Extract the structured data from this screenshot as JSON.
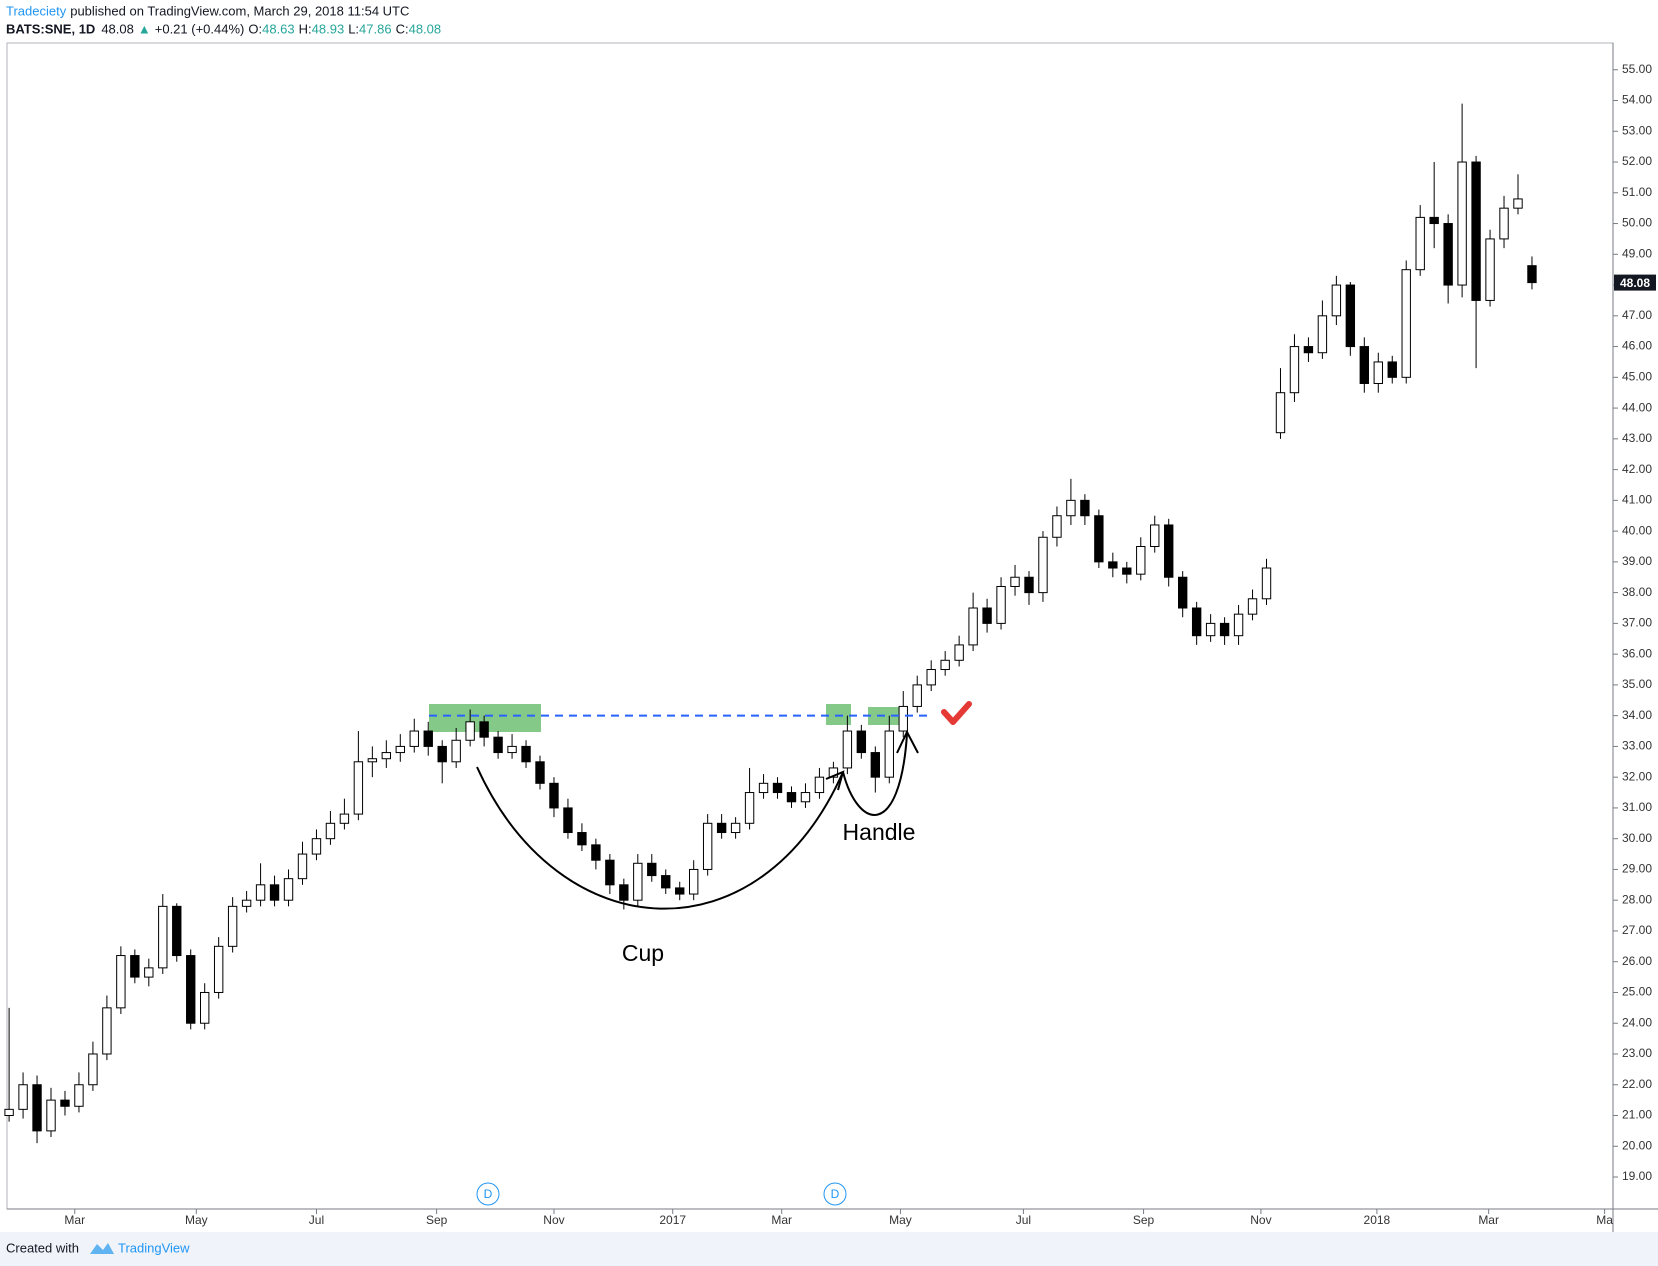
{
  "header": {
    "publisher": "Tradeciety",
    "published": "published on TradingView.com, March 29, 2018 11:54 UTC",
    "symbol": "BATS:SNE, 1D",
    "price": "48.08",
    "change_arrow": "▲",
    "change": "+0.21 (+0.44%)",
    "ohlc": [
      {
        "key": "O:",
        "value": "48.63"
      },
      {
        "key": "H:",
        "value": "48.93"
      },
      {
        "key": "L:",
        "value": "47.86"
      },
      {
        "key": "C:",
        "value": "48.08"
      }
    ]
  },
  "chart_data": {
    "type": "candlestick",
    "open": [
      21.0,
      21.2,
      22.0,
      20.5,
      21.5,
      21.3,
      22.0,
      23.0,
      24.5,
      26.2,
      25.5,
      25.8,
      27.8,
      26.2,
      24.0,
      25.0,
      26.5,
      27.8,
      28.0,
      28.5,
      28.0,
      28.7,
      29.5,
      30.0,
      30.5,
      30.8,
      32.5,
      32.6,
      32.8,
      33.0,
      33.5,
      33.0,
      32.5,
      33.2,
      33.8,
      33.3,
      32.8,
      33.0,
      32.5,
      31.8,
      31.0,
      30.2,
      29.8,
      29.3,
      28.5,
      28.0,
      29.2,
      28.8,
      28.4,
      28.2,
      29.0,
      30.5,
      30.2,
      30.5,
      31.5,
      31.8,
      31.5,
      31.2,
      31.5,
      32.0,
      32.3,
      33.5,
      32.8,
      32.0,
      33.5,
      34.3,
      35.0,
      35.5,
      35.8,
      36.3,
      37.5,
      37.0,
      38.2,
      38.5,
      38.0,
      39.8,
      40.5,
      41.0,
      40.5,
      39.0,
      38.8,
      38.6,
      39.5,
      40.2,
      38.5,
      37.5,
      36.6,
      37.0,
      36.6,
      37.3,
      37.8,
      43.2,
      44.5,
      46.0,
      45.8,
      47.0,
      48.0,
      46.0,
      44.8,
      45.5,
      45.0,
      48.5,
      50.2,
      50.0,
      48.0,
      52.0,
      47.5,
      49.5,
      50.5,
      48.63
    ],
    "high": [
      24.5,
      22.4,
      22.3,
      21.9,
      21.8,
      22.4,
      23.4,
      24.9,
      26.5,
      26.4,
      26.1,
      28.2,
      27.9,
      26.4,
      25.3,
      26.8,
      28.1,
      28.3,
      29.2,
      28.8,
      29.0,
      29.9,
      30.3,
      30.9,
      31.3,
      33.5,
      33.0,
      33.2,
      33.4,
      33.9,
      33.8,
      33.2,
      33.6,
      34.2,
      34.0,
      33.5,
      33.4,
      33.2,
      32.7,
      32.0,
      31.3,
      30.5,
      30.0,
      29.5,
      28.7,
      29.5,
      29.5,
      29.0,
      28.6,
      29.3,
      30.8,
      30.8,
      30.7,
      32.3,
      32.1,
      32.0,
      31.7,
      31.8,
      32.3,
      32.5,
      34.0,
      33.7,
      33.0,
      34.0,
      34.8,
      35.3,
      35.8,
      36.1,
      36.6,
      38.0,
      37.8,
      38.5,
      38.9,
      38.7,
      40.0,
      40.8,
      41.7,
      41.2,
      40.7,
      39.3,
      39.0,
      39.8,
      40.5,
      40.4,
      38.7,
      37.7,
      37.3,
      37.2,
      37.6,
      38.1,
      39.1,
      45.3,
      46.4,
      46.3,
      47.5,
      48.3,
      48.1,
      46.3,
      45.8,
      45.7,
      48.8,
      50.6,
      52.0,
      50.3,
      53.9,
      52.2,
      49.8,
      50.9,
      51.6,
      48.93
    ],
    "low": [
      20.8,
      20.9,
      20.1,
      20.3,
      21.0,
      21.1,
      21.8,
      22.8,
      24.3,
      25.3,
      25.2,
      25.6,
      26.0,
      23.8,
      23.8,
      24.8,
      26.3,
      27.6,
      27.8,
      27.8,
      27.8,
      28.5,
      29.3,
      29.8,
      30.3,
      30.6,
      32.0,
      32.3,
      32.5,
      32.8,
      32.7,
      31.8,
      32.3,
      33.0,
      33.0,
      32.6,
      32.6,
      32.3,
      31.6,
      30.7,
      30.0,
      29.6,
      29.0,
      28.2,
      27.7,
      27.8,
      28.6,
      28.2,
      28.0,
      28.0,
      28.8,
      30.0,
      30.0,
      30.3,
      31.3,
      31.3,
      31.0,
      31.0,
      31.3,
      31.8,
      32.1,
      32.6,
      31.5,
      31.8,
      33.3,
      34.1,
      34.8,
      35.3,
      35.6,
      36.1,
      36.7,
      36.8,
      37.9,
      37.6,
      37.7,
      39.5,
      40.2,
      40.2,
      38.8,
      38.5,
      38.3,
      38.4,
      39.3,
      38.2,
      37.2,
      36.3,
      36.4,
      36.3,
      36.3,
      37.1,
      37.6,
      43.0,
      44.2,
      45.5,
      45.6,
      46.7,
      45.7,
      44.5,
      44.5,
      44.8,
      44.8,
      48.3,
      49.2,
      47.4,
      47.6,
      45.3,
      47.3,
      49.2,
      50.3,
      47.86
    ],
    "close": [
      21.2,
      22.0,
      20.5,
      21.5,
      21.3,
      22.0,
      23.0,
      24.5,
      26.2,
      25.5,
      25.8,
      27.8,
      26.2,
      24.0,
      25.0,
      26.5,
      27.8,
      28.0,
      28.5,
      28.0,
      28.7,
      29.5,
      30.0,
      30.5,
      30.8,
      32.5,
      32.6,
      32.8,
      33.0,
      33.5,
      33.0,
      32.5,
      33.2,
      33.8,
      33.3,
      32.8,
      33.0,
      32.5,
      31.8,
      31.0,
      30.2,
      29.8,
      29.3,
      28.5,
      28.0,
      29.2,
      28.8,
      28.4,
      28.2,
      29.0,
      30.5,
      30.2,
      30.5,
      31.5,
      31.8,
      31.5,
      31.2,
      31.5,
      32.0,
      32.3,
      33.5,
      32.8,
      32.0,
      33.5,
      34.3,
      35.0,
      35.5,
      35.8,
      36.3,
      37.5,
      37.0,
      38.2,
      38.5,
      38.0,
      39.8,
      40.5,
      41.0,
      40.5,
      39.0,
      38.8,
      38.6,
      39.5,
      40.2,
      38.5,
      37.5,
      36.6,
      37.0,
      36.6,
      37.3,
      37.8,
      38.8,
      44.5,
      46.0,
      45.8,
      47.0,
      48.0,
      46.0,
      44.8,
      45.5,
      45.0,
      48.5,
      50.2,
      50.0,
      48.0,
      52.0,
      47.5,
      49.5,
      50.5,
      50.8,
      48.08
    ],
    "up_color": "#ffffff",
    "down_color": "#000000",
    "wick_color": "#000000",
    "xlim": [
      -0.15,
      114.8
    ],
    "xticks": [
      {
        "value": 4.7,
        "label": "Mar"
      },
      {
        "value": 13.4,
        "label": "May"
      },
      {
        "value": 22,
        "label": "Jul"
      },
      {
        "value": 30.6,
        "label": "Sep"
      },
      {
        "value": 39,
        "label": "Nov"
      },
      {
        "value": 47.5,
        "label": "2017"
      },
      {
        "value": 55.3,
        "label": "Mar"
      },
      {
        "value": 63.8,
        "label": "May"
      },
      {
        "value": 72.6,
        "label": "Jul"
      },
      {
        "value": 81.2,
        "label": "Sep"
      },
      {
        "value": 89.6,
        "label": "Nov"
      },
      {
        "value": 97.9,
        "label": "2018"
      },
      {
        "value": 105.9,
        "label": "Mar"
      },
      {
        "value": 114.2,
        "label": "Ma"
      }
    ],
    "ylim": [
      17.96,
      55.87
    ],
    "yticks": [
      {
        "value": 19,
        "label": "19.00"
      },
      {
        "value": 20,
        "label": "20.00"
      },
      {
        "value": 21,
        "label": "21.00"
      },
      {
        "value": 22,
        "label": "22.00"
      },
      {
        "value": 23,
        "label": "23.00"
      },
      {
        "value": 24,
        "label": "24.00"
      },
      {
        "value": 25,
        "label": "25.00"
      },
      {
        "value": 26,
        "label": "26.00"
      },
      {
        "value": 27,
        "label": "27.00"
      },
      {
        "value": 28,
        "label": "28.00"
      },
      {
        "value": 29,
        "label": "29.00"
      },
      {
        "value": 30,
        "label": "30.00"
      },
      {
        "value": 31,
        "label": "31.00"
      },
      {
        "value": 32,
        "label": "32.00"
      },
      {
        "value": 33,
        "label": "33.00"
      },
      {
        "value": 34,
        "label": "34.00"
      },
      {
        "value": 35,
        "label": "35.00"
      },
      {
        "value": 36,
        "label": "36.00"
      },
      {
        "value": 37,
        "label": "37.00"
      },
      {
        "value": 38,
        "label": "38.00"
      },
      {
        "value": 39,
        "label": "39.00"
      },
      {
        "value": 40,
        "label": "40.00"
      },
      {
        "value": 41,
        "label": "41.00"
      },
      {
        "value": 42,
        "label": "42.00"
      },
      {
        "value": 43,
        "label": "43.00"
      },
      {
        "value": 44,
        "label": "44.00"
      },
      {
        "value": 45,
        "label": "45.00"
      },
      {
        "value": 46,
        "label": "46.00"
      },
      {
        "value": 47,
        "label": "47.00"
      },
      {
        "value": 48,
        "label": "48.00"
      },
      {
        "value": 49,
        "label": "49.00"
      },
      {
        "value": 50,
        "label": "50.00"
      },
      {
        "value": 51,
        "label": "51.00"
      },
      {
        "value": 52,
        "label": "52.00"
      },
      {
        "value": 53,
        "label": "53.00"
      },
      {
        "value": 54,
        "label": "54.00"
      },
      {
        "value": 55,
        "label": "55.00"
      }
    ],
    "grid": false,
    "resistance": 34,
    "resistance_color": "#2962ff",
    "annotations": {
      "cup": "Cup",
      "handle": "Handle"
    },
    "events": [
      "D",
      "D"
    ]
  },
  "footer": {
    "created": "Created with",
    "brand": "TradingView"
  }
}
